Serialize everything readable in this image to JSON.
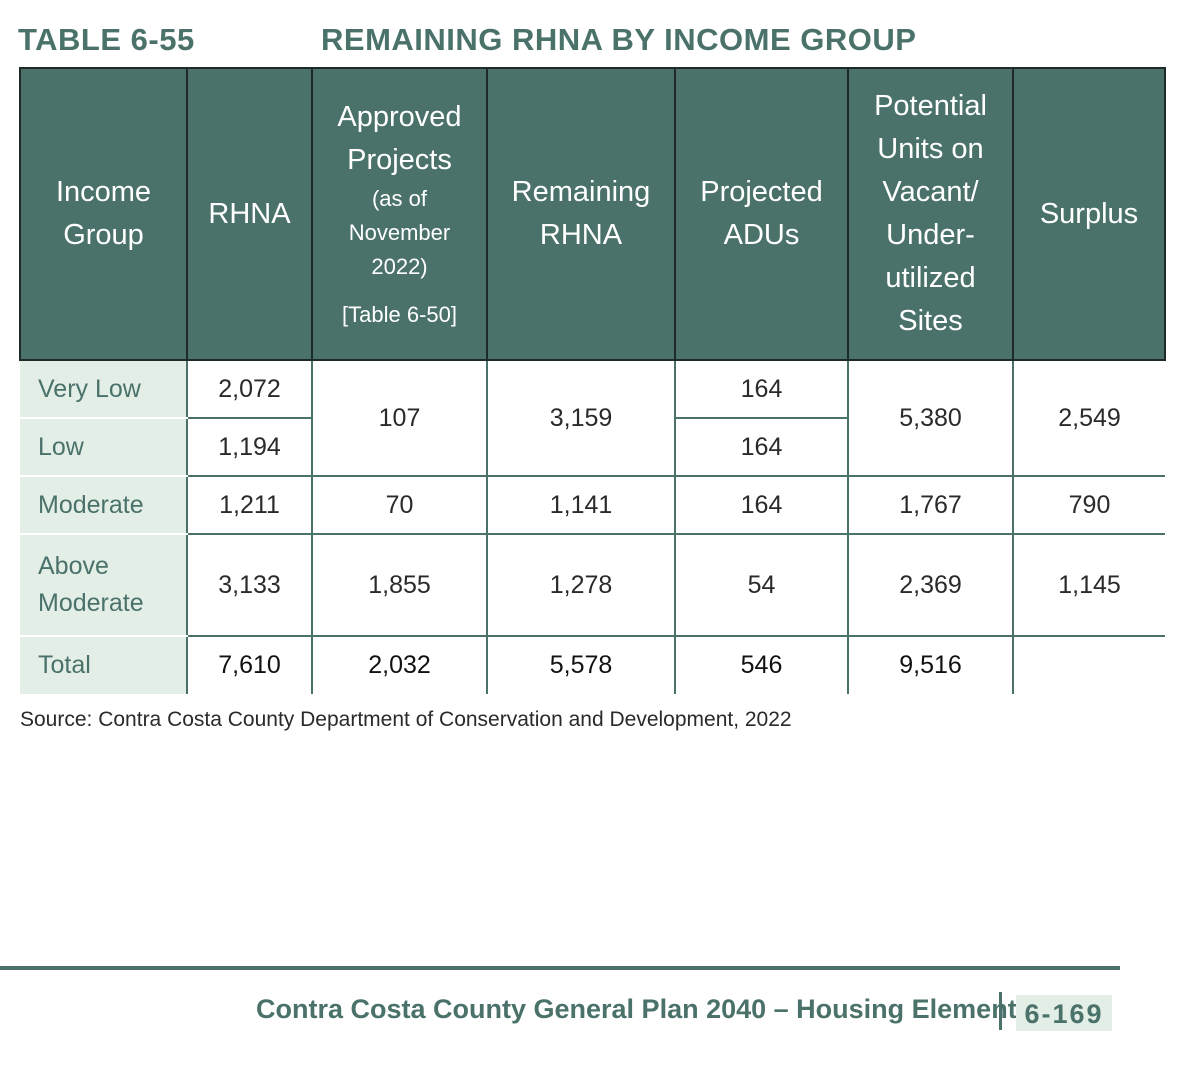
{
  "title": {
    "number": "TABLE 6-55",
    "text": "REMAINING RHNA BY INCOME GROUP"
  },
  "headers": {
    "income_group": "Income Group",
    "rhna": "RHNA",
    "approved_main": "Approved Projects",
    "approved_sub": "(as of November 2022)",
    "approved_ref": "[Table 6-50]",
    "remaining": "Remaining RHNA",
    "projected": "Projected ADUs",
    "potential": "Potential Units on Vacant/ Under-utilized Sites",
    "surplus": "Surplus"
  },
  "rows": {
    "very_low": {
      "label": "Very Low",
      "rhna": "2,072",
      "adus": "164"
    },
    "low": {
      "label": "Low",
      "rhna": "1,194",
      "adus": "164"
    },
    "combined_low": {
      "approved": "107",
      "remaining": "3,159",
      "potential": "5,380",
      "surplus": "2,549"
    },
    "moderate": {
      "label": "Moderate",
      "rhna": "1,211",
      "approved": "70",
      "remaining": "1,141",
      "adus": "164",
      "potential": "1,767",
      "surplus": "790"
    },
    "above_moderate": {
      "label": "Above Moderate",
      "rhna": "3,133",
      "approved": "1,855",
      "remaining": "1,278",
      "adus": "54",
      "potential": "2,369",
      "surplus": "1,145"
    },
    "total": {
      "label": "Total",
      "rhna": "7,610",
      "approved": "2,032",
      "remaining": "5,578",
      "adus": "546",
      "potential": "9,516",
      "surplus": ""
    }
  },
  "source": "Source: Contra Costa County Department of Conservation and Development, 2022",
  "footer": {
    "text": "Contra Costa County General Plan 2040 – Housing Element",
    "page": "6-169"
  },
  "colors": {
    "header_bg": "#4a726b",
    "label_bg": "#e3eee6",
    "accent_text": "#4a726b"
  }
}
